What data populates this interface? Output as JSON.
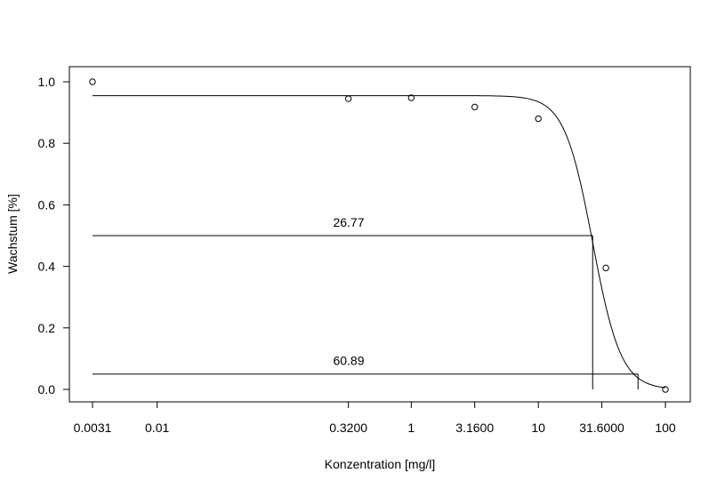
{
  "chart_data": {
    "type": "scatter",
    "xlabel": "Konzentration [mg/l]",
    "ylabel": "Wachstum [%]",
    "x_scale": "log10",
    "xlim": [
      0.0031,
      100
    ],
    "ylim": [
      0,
      1.0
    ],
    "x_ticks": [
      0.0031,
      0.01,
      0.32,
      1,
      3.16,
      10,
      31.6,
      100
    ],
    "x_tick_labels": [
      "0.0031",
      "0.01",
      "0.3200",
      "1",
      "3.1600",
      "10",
      "31.6000",
      "100"
    ],
    "y_ticks": [
      0.0,
      0.2,
      0.4,
      0.6,
      0.8,
      1.0
    ],
    "y_tick_labels": [
      "0.0",
      "0.2",
      "0.4",
      "0.6",
      "0.8",
      "1.0"
    ],
    "points": [
      {
        "x": 0.0031,
        "y": 1.0
      },
      {
        "x": 0.32,
        "y": 0.945
      },
      {
        "x": 1,
        "y": 0.948
      },
      {
        "x": 3.16,
        "y": 0.918
      },
      {
        "x": 10,
        "y": 0.88
      },
      {
        "x": 34,
        "y": 0.395
      },
      {
        "x": 100,
        "y": 0.0
      }
    ],
    "fit_curve": {
      "model": "log-logistic",
      "upper": 0.955,
      "lower": 0.0,
      "ec50": 26.77,
      "slope": 3.9,
      "x_start": 0.0031,
      "x_end": 100
    },
    "reference_lines": [
      {
        "y": 0.5,
        "x_end": 26.77,
        "label": "26.77"
      },
      {
        "y": 0.05,
        "x_end": 60.89,
        "label": "60.89"
      }
    ],
    "grid": false,
    "legend": "none"
  }
}
